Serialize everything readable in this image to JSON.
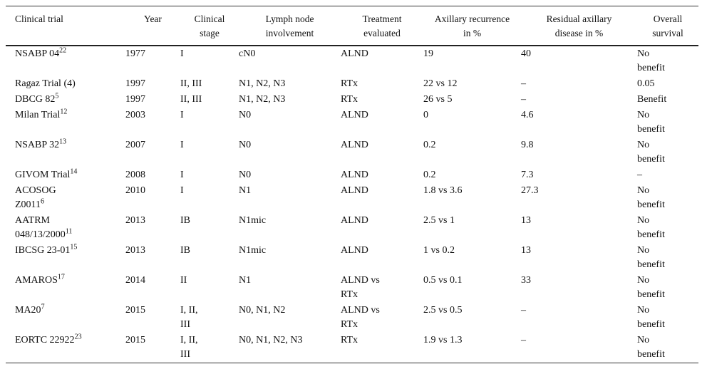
{
  "table": {
    "header": [
      "Clinical trial",
      "Year",
      "Clinical stage",
      "Lymph node involvement",
      "Treatment evaluated",
      "Axillary recurrence in %",
      "Residual axillary disease in %",
      "Overall survival"
    ],
    "rows": [
      {
        "trial": "NSABP 04",
        "ref": "22",
        "cells": [
          "1977",
          "I",
          "cN0",
          "ALND",
          "19",
          "40",
          "No benefit"
        ]
      },
      {
        "trial": "Ragaz Trial (4)",
        "cells": [
          "1997",
          "II, III",
          "N1, N2, N3",
          "RTx",
          "22 vs 12",
          "–",
          "0.05"
        ]
      },
      {
        "trial": "DBCG 82",
        "ref": "5",
        "cells": [
          "1997",
          "II, III",
          "N1, N2, N3",
          "RTx",
          "26 vs 5",
          "–",
          "Benefit"
        ]
      },
      {
        "trial": "Milan Trial",
        "ref": "12",
        "cells": [
          "2003",
          "I",
          "N0",
          "ALND",
          "0",
          "4.6",
          "No benefit"
        ]
      },
      {
        "trial": "NSABP 32",
        "ref": "13",
        "cells": [
          "2007",
          "I",
          "N0",
          "ALND",
          "0.2",
          "9.8",
          "No benefit"
        ]
      },
      {
        "trial": "GIVOM Trial",
        "ref": "14",
        "cells": [
          "2008",
          "I",
          "N0",
          "ALND",
          "0.2",
          "7.3",
          "–"
        ]
      },
      {
        "trial": "ACOSOG Z0011",
        "ref": "6",
        "cells": [
          "2010",
          "I",
          "N1",
          "ALND",
          "1.8 vs 3.6",
          "27.3",
          "No benefit"
        ]
      },
      {
        "trial": "AATRM 048/13/2000",
        "ref": "11",
        "cells": [
          "2013",
          "IB",
          "N1mic",
          "ALND",
          "2.5 vs 1",
          "13",
          "No benefit"
        ]
      },
      {
        "trial": "IBCSG 23-01",
        "ref": "15",
        "cells": [
          "2013",
          "IB",
          "N1mic",
          "ALND",
          "1 vs 0.2",
          "13",
          "No benefit"
        ]
      },
      {
        "trial": "AMAROS",
        "ref": "17",
        "cells": [
          "2014",
          "II",
          "N1",
          "ALND vs RTx",
          "0.5 vs 0.1",
          "33",
          "No benefit"
        ]
      },
      {
        "trial": "MA20",
        "ref": "7",
        "cells": [
          "2015",
          "I, II, III",
          "N0, N1, N2",
          "ALND vs RTx",
          "2.5 vs 0.5",
          "–",
          "No benefit"
        ]
      },
      {
        "trial": "EORTC 22922",
        "ref": "23",
        "cells": [
          "2015",
          "I, II, III",
          "N0, N1, N2, N3",
          "RTx",
          "1.9 vs 1.3",
          "–",
          "No benefit"
        ]
      }
    ]
  }
}
